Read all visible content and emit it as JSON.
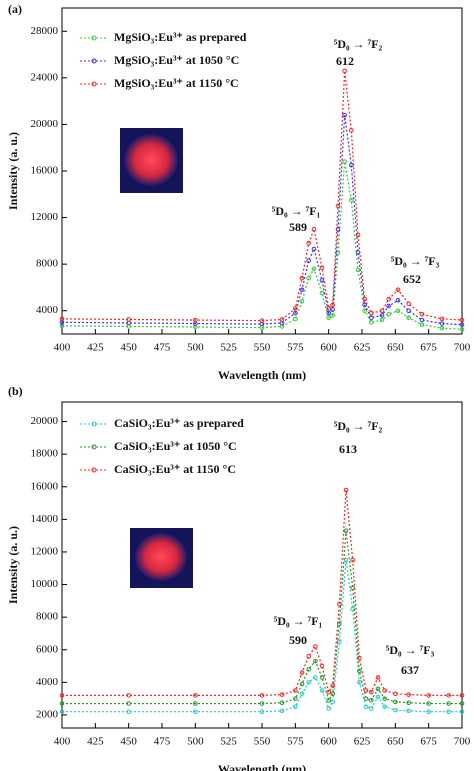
{
  "chart_data": [
    {
      "type": "line",
      "panel_label": "(a)",
      "x_label": "Wavelength (nm)",
      "y_label": "Intensity (a. u.)",
      "x": [
        400,
        450,
        500,
        550,
        565,
        575,
        580,
        585,
        589,
        595,
        600,
        603,
        607,
        612,
        617,
        622,
        627,
        632,
        640,
        645,
        652,
        660,
        670,
        685,
        700
      ],
      "xlim": [
        400,
        700
      ],
      "xticks": [
        400,
        425,
        450,
        475,
        500,
        525,
        550,
        575,
        600,
        625,
        650,
        675,
        700
      ],
      "ylim": [
        2000,
        30000
      ],
      "yticks": [
        4000,
        8000,
        12000,
        16000,
        20000,
        24000,
        28000
      ],
      "series": [
        {
          "name": "MgSiO₃:Eu³⁺ as prepared",
          "color": "#33cc33",
          "values": [
            2700,
            2650,
            2600,
            2550,
            2650,
            3300,
            4800,
            6800,
            7600,
            5500,
            3400,
            3600,
            9000,
            16800,
            13500,
            7500,
            4000,
            3000,
            3200,
            3700,
            4000,
            3400,
            2800,
            2500,
            2400
          ]
        },
        {
          "name": "MgSiO₃:Eu³⁺ at 1050 °C",
          "color": "#3333ff",
          "values": [
            3000,
            2950,
            2900,
            2850,
            2950,
            3800,
            5800,
            8300,
            9300,
            6600,
            3800,
            4100,
            11000,
            20800,
            16500,
            9000,
            4500,
            3400,
            3600,
            4400,
            4900,
            4000,
            3200,
            2900,
            2800
          ]
        },
        {
          "name": "MgSiO₃:Eu³⁺ at 1150 °C",
          "color": "#ff2222",
          "values": [
            3300,
            3250,
            3200,
            3150,
            3250,
            4200,
            6800,
            9800,
            11000,
            7700,
            4200,
            4500,
            13000,
            24600,
            19500,
            10500,
            5000,
            3800,
            4000,
            5000,
            5800,
            4600,
            3700,
            3300,
            3200
          ]
        }
      ],
      "annotations": [
        "⁵D₀ → ⁷F₂",
        "612",
        "⁵D₀ → ⁷F₁",
        "589",
        "⁵D₀ → ⁷F₃",
        "652"
      ]
    },
    {
      "type": "line",
      "panel_label": "(b)",
      "x_label": "Wavelength (nm)",
      "y_label": "Intensity (a. u.)",
      "x": [
        400,
        450,
        500,
        550,
        565,
        575,
        580,
        585,
        590,
        595,
        600,
        603,
        608,
        613,
        618,
        623,
        628,
        632,
        637,
        642,
        650,
        660,
        675,
        690,
        700
      ],
      "xlim": [
        400,
        700
      ],
      "xticks": [
        400,
        425,
        450,
        475,
        500,
        525,
        550,
        575,
        600,
        625,
        650,
        675,
        700
      ],
      "ylim": [
        1200,
        21200
      ],
      "yticks": [
        2000,
        4000,
        6000,
        8000,
        10000,
        12000,
        14000,
        16000,
        18000,
        20000
      ],
      "series": [
        {
          "name": "CaSiO₃:Eu³⁺ as prepared",
          "color": "#22cccc",
          "values": [
            2200,
            2200,
            2200,
            2200,
            2250,
            2500,
            3300,
            4000,
            4300,
            3500,
            2400,
            2800,
            6500,
            11500,
            8500,
            4000,
            2500,
            2400,
            3100,
            2500,
            2300,
            2250,
            2200,
            2200,
            2200
          ]
        },
        {
          "name": "CaSiO₃:Eu³⁺ at 1050 °C",
          "color": "#229922",
          "values": [
            2700,
            2700,
            2700,
            2700,
            2750,
            3000,
            3900,
            4800,
            5300,
            4300,
            2900,
            3300,
            7600,
            13300,
            9800,
            4700,
            3000,
            2900,
            3600,
            3000,
            2800,
            2750,
            2700,
            2700,
            2700
          ]
        },
        {
          "name": "CaSiO₃:Eu³⁺ at 1150 °C",
          "color": "#ff2222",
          "values": [
            3200,
            3200,
            3200,
            3200,
            3250,
            3500,
            4600,
            5600,
            6200,
            5000,
            3400,
            3800,
            8800,
            15800,
            11500,
            5500,
            3500,
            3400,
            4300,
            3500,
            3300,
            3250,
            3200,
            3200,
            3200
          ]
        }
      ],
      "annotations": [
        "⁵D₀ → ⁷F₂",
        "613",
        "⁵D₀ → ⁷F₁",
        "590",
        "⁵D₀ → ⁷F₃",
        "637"
      ]
    }
  ]
}
